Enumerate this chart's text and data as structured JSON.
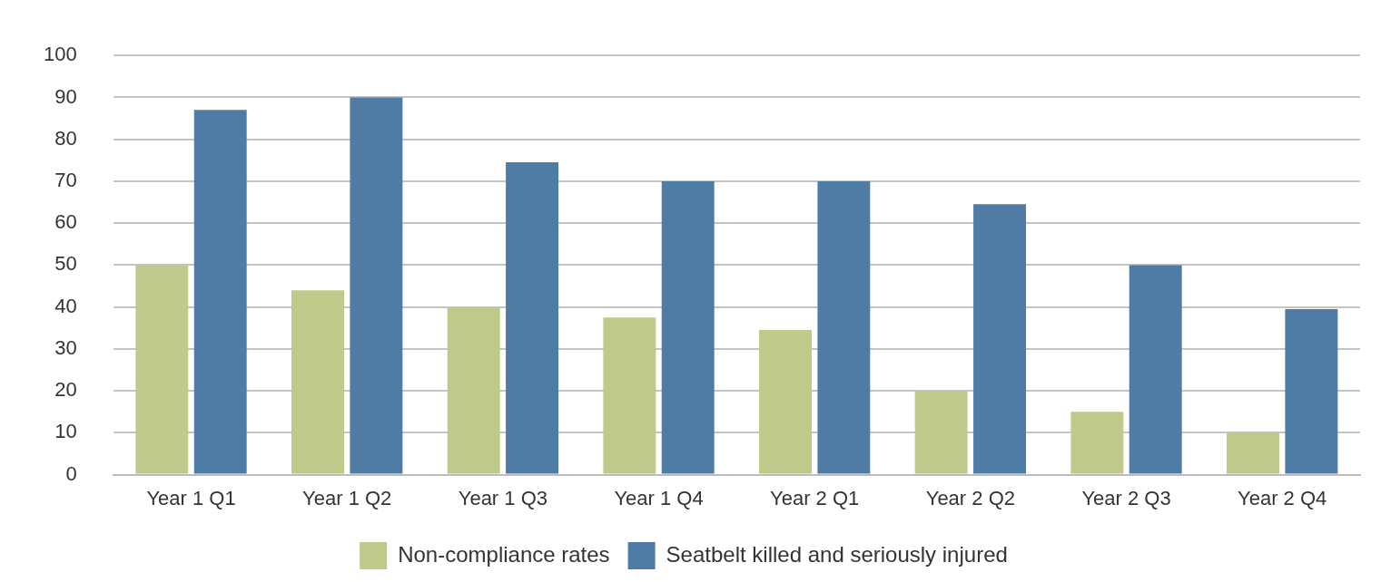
{
  "chart_data": {
    "type": "bar",
    "categories": [
      "Year 1 Q1",
      "Year 1 Q2",
      "Year 1 Q3",
      "Year 1 Q4",
      "Year 2 Q1",
      "Year 2 Q2",
      "Year 2 Q3",
      "Year 2 Q4"
    ],
    "series": [
      {
        "name": "Non-compliance rates",
        "color": "#bfc98a",
        "values": [
          50,
          44,
          40,
          37.5,
          34.5,
          20,
          15,
          10
        ]
      },
      {
        "name": "Seatbelt killed and seriously injured",
        "color": "#4e7ca5",
        "values": [
          87,
          90,
          74.5,
          70,
          70,
          64.5,
          50,
          39.5
        ]
      }
    ],
    "ylim": [
      0,
      100
    ],
    "yticks": [
      0,
      10,
      20,
      30,
      40,
      50,
      60,
      70,
      80,
      90,
      100
    ],
    "grid": "y",
    "legend": "bottom"
  }
}
